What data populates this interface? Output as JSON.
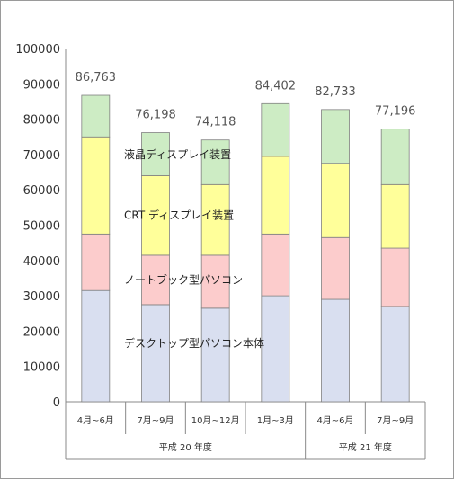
{
  "chart_data": {
    "type": "bar",
    "stacked": true,
    "categories": [
      "4月~6月",
      "7月~9月",
      "10月~12月",
      "1月~3月",
      "4月~6月",
      "7月~9月"
    ],
    "category_groups": [
      {
        "label": "平成 20 年度",
        "span": 4
      },
      {
        "label": "平成 21 年度",
        "span": 2
      }
    ],
    "series": [
      {
        "name": "デスクトップ型パソコン本体",
        "color": "#d9dff0",
        "values": [
          31500,
          27500,
          26500,
          30000,
          29000,
          27000
        ]
      },
      {
        "name": "ノートブック型パソコン",
        "color": "#fccccc",
        "values": [
          16000,
          14000,
          15000,
          17500,
          17500,
          16500
        ]
      },
      {
        "name": "CRT ディスプレイ装置",
        "color": "#ffff9a",
        "values": [
          27500,
          22500,
          20000,
          22000,
          21000,
          18000
        ]
      },
      {
        "name": "液晶ディスプレイ装置",
        "color": "#cdecc4",
        "values": [
          11763,
          12198,
          12618,
          14902,
          15233,
          15696
        ]
      }
    ],
    "totals": [
      "86,763",
      "76,198",
      "74,118",
      "84,402",
      "82,733",
      "77,196"
    ],
    "ylim": [
      0,
      100000
    ],
    "yticks": [
      "0",
      "10000",
      "20000",
      "30000",
      "40000",
      "50000",
      "60000",
      "70000",
      "80000",
      "90000",
      "100000"
    ],
    "title": "",
    "xlabel": "",
    "ylabel": "",
    "grid": false,
    "legend": "inline labels on bars"
  }
}
